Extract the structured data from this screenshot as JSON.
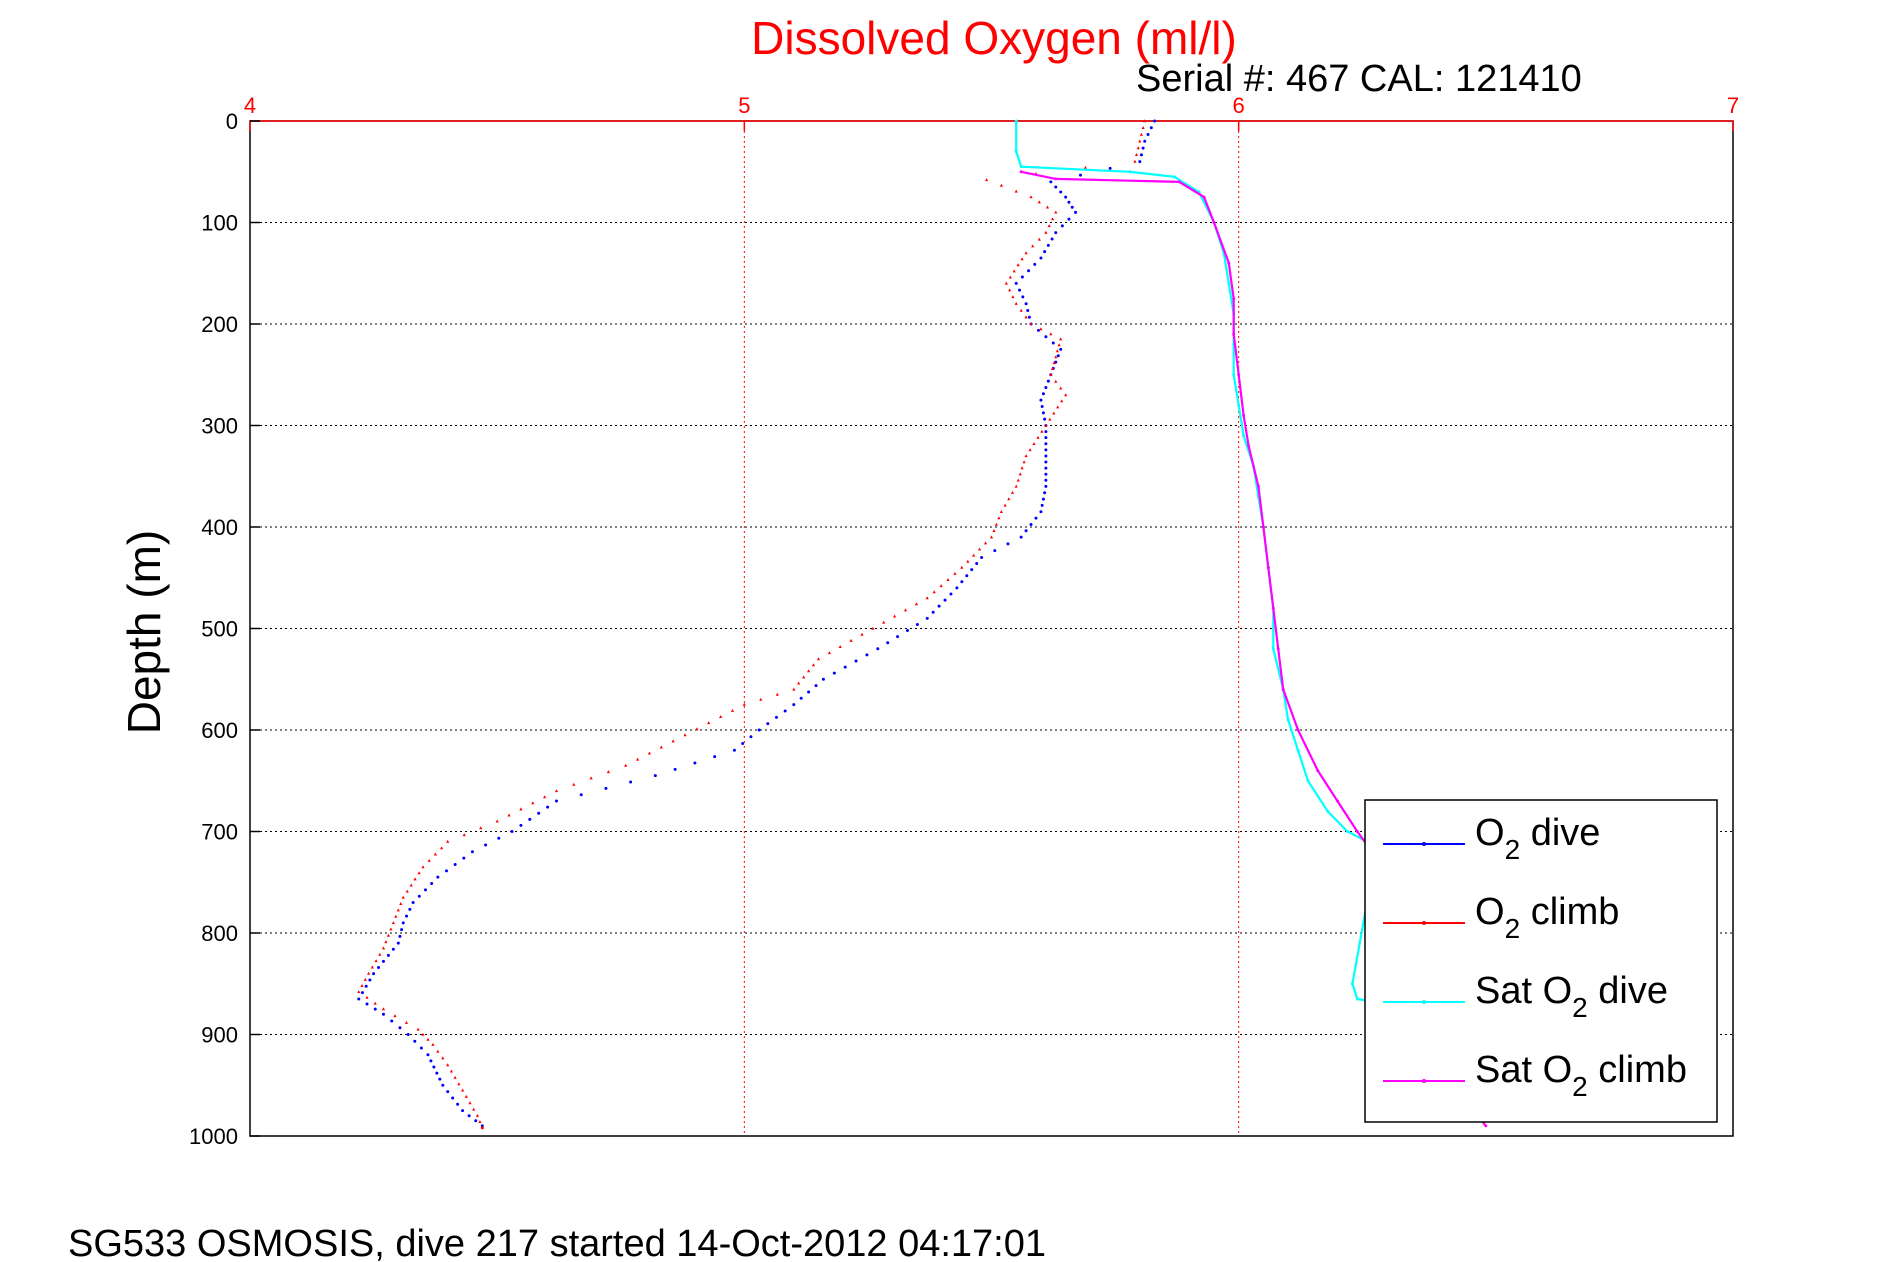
{
  "footer": "SG533 OSMOSIS, dive 217 started 14-Oct-2012 04:17:01",
  "chart_data": {
    "type": "scatter",
    "title": "Dissolved Oxygen (ml/l)",
    "subtitle": "Serial #: 467  CAL: 121410",
    "ylabel": "Depth (m)",
    "xlabel": "",
    "xlim": [
      4,
      7
    ],
    "ylim": [
      0,
      1000
    ],
    "y_reversed": true,
    "x_axis_position": "top",
    "x_ticks": [
      "4",
      "5",
      "6",
      "7"
    ],
    "y_ticks": [
      "0",
      "100",
      "200",
      "300",
      "400",
      "500",
      "600",
      "700",
      "800",
      "900",
      "1000"
    ],
    "grid": true,
    "legend_position": "lower-right",
    "colors": {
      "title": "#ff0000",
      "x_axis": "#ff0000",
      "o2_dive": "#0000ff",
      "o2_climb": "#ff0000",
      "sat_dive": "#00ffff",
      "sat_climb": "#ff00ff"
    },
    "series": [
      {
        "name": "O2 dive",
        "color": "#0000ff",
        "marker": "dot",
        "points": [
          [
            5.83,
            0
          ],
          [
            5.81,
            20
          ],
          [
            5.8,
            40
          ],
          [
            5.62,
            60
          ],
          [
            5.65,
            75
          ],
          [
            5.67,
            90
          ],
          [
            5.63,
            110
          ],
          [
            5.6,
            135
          ],
          [
            5.55,
            160
          ],
          [
            5.57,
            180
          ],
          [
            5.58,
            200
          ],
          [
            5.64,
            225
          ],
          [
            5.62,
            250
          ],
          [
            5.6,
            275
          ],
          [
            5.61,
            300
          ],
          [
            5.61,
            330
          ],
          [
            5.61,
            360
          ],
          [
            5.6,
            385
          ],
          [
            5.56,
            410
          ],
          [
            5.48,
            430
          ],
          [
            5.43,
            460
          ],
          [
            5.37,
            490
          ],
          [
            5.27,
            520
          ],
          [
            5.16,
            550
          ],
          [
            5.1,
            575
          ],
          [
            5.03,
            600
          ],
          [
            4.98,
            620
          ],
          [
            4.82,
            645
          ],
          [
            4.62,
            670
          ],
          [
            4.53,
            700
          ],
          [
            4.45,
            720
          ],
          [
            4.38,
            745
          ],
          [
            4.33,
            770
          ],
          [
            4.31,
            790
          ],
          [
            4.3,
            810
          ],
          [
            4.25,
            840
          ],
          [
            4.22,
            865
          ],
          [
            4.27,
            880
          ],
          [
            4.32,
            900
          ],
          [
            4.36,
            920
          ],
          [
            4.39,
            950
          ],
          [
            4.43,
            975
          ],
          [
            4.47,
            990
          ]
        ]
      },
      {
        "name": "O2 climb",
        "color": "#ff0000",
        "marker": "triangle",
        "points": [
          [
            5.81,
            0
          ],
          [
            5.8,
            20
          ],
          [
            5.79,
            40
          ],
          [
            5.49,
            58
          ],
          [
            5.58,
            75
          ],
          [
            5.63,
            90
          ],
          [
            5.61,
            110
          ],
          [
            5.57,
            130
          ],
          [
            5.53,
            160
          ],
          [
            5.55,
            180
          ],
          [
            5.58,
            200
          ],
          [
            5.64,
            215
          ],
          [
            5.62,
            250
          ],
          [
            5.65,
            270
          ],
          [
            5.61,
            300
          ],
          [
            5.57,
            330
          ],
          [
            5.55,
            360
          ],
          [
            5.52,
            385
          ],
          [
            5.5,
            410
          ],
          [
            5.44,
            440
          ],
          [
            5.37,
            470
          ],
          [
            5.26,
            500
          ],
          [
            5.15,
            530
          ],
          [
            5.1,
            560
          ],
          [
            5.0,
            575
          ],
          [
            4.88,
            605
          ],
          [
            4.76,
            635
          ],
          [
            4.62,
            660
          ],
          [
            4.5,
            690
          ],
          [
            4.4,
            710
          ],
          [
            4.35,
            735
          ],
          [
            4.31,
            765
          ],
          [
            4.29,
            790
          ],
          [
            4.27,
            815
          ],
          [
            4.24,
            840
          ],
          [
            4.22,
            858
          ],
          [
            4.27,
            875
          ],
          [
            4.34,
            895
          ],
          [
            4.37,
            910
          ],
          [
            4.4,
            930
          ],
          [
            4.43,
            955
          ],
          [
            4.46,
            980
          ],
          [
            4.47,
            992
          ]
        ]
      },
      {
        "name": "Sat O2 dive",
        "color": "#00ffff",
        "marker": "line",
        "points": [
          [
            5.55,
            0
          ],
          [
            5.55,
            30
          ],
          [
            5.56,
            45
          ],
          [
            5.78,
            50
          ],
          [
            5.87,
            55
          ],
          [
            5.92,
            70
          ],
          [
            5.95,
            100
          ],
          [
            5.97,
            130
          ],
          [
            5.98,
            160
          ],
          [
            5.99,
            190
          ],
          [
            5.99,
            220
          ],
          [
            5.99,
            250
          ],
          [
            6.0,
            280
          ],
          [
            6.01,
            310
          ],
          [
            6.03,
            340
          ],
          [
            6.04,
            370
          ],
          [
            6.05,
            400
          ],
          [
            6.06,
            440
          ],
          [
            6.07,
            480
          ],
          [
            6.07,
            520
          ],
          [
            6.09,
            560
          ],
          [
            6.1,
            590
          ],
          [
            6.12,
            620
          ],
          [
            6.14,
            650
          ],
          [
            6.18,
            680
          ],
          [
            6.22,
            700
          ],
          [
            6.28,
            715
          ],
          [
            6.23,
            850
          ],
          [
            6.24,
            865
          ],
          [
            6.3,
            870
          ]
        ]
      },
      {
        "name": "Sat O2 climb",
        "color": "#ff00ff",
        "marker": "line",
        "points": [
          [
            5.56,
            50
          ],
          [
            5.63,
            57
          ],
          [
            5.88,
            60
          ],
          [
            5.93,
            75
          ],
          [
            5.95,
            100
          ],
          [
            5.98,
            140
          ],
          [
            5.99,
            175
          ],
          [
            5.99,
            210
          ],
          [
            6.0,
            250
          ],
          [
            6.01,
            290
          ],
          [
            6.02,
            320
          ],
          [
            6.04,
            360
          ],
          [
            6.05,
            400
          ],
          [
            6.06,
            440
          ],
          [
            6.07,
            480
          ],
          [
            6.08,
            520
          ],
          [
            6.09,
            560
          ],
          [
            6.12,
            600
          ],
          [
            6.16,
            640
          ],
          [
            6.2,
            670
          ],
          [
            6.24,
            700
          ],
          [
            6.27,
            720
          ],
          [
            6.26,
            850
          ],
          [
            6.28,
            860
          ],
          [
            6.5,
            990
          ]
        ]
      }
    ],
    "legend": [
      {
        "label": "O",
        "sub": "2",
        "rest": " dive",
        "color": "#0000ff"
      },
      {
        "label": "O",
        "sub": "2",
        "rest": " climb",
        "color": "#ff0000"
      },
      {
        "label": "Sat O",
        "sub": "2",
        "rest": " dive",
        "color": "#00ffff"
      },
      {
        "label": "Sat O",
        "sub": "2",
        "rest": " climb",
        "color": "#ff00ff"
      }
    ]
  }
}
